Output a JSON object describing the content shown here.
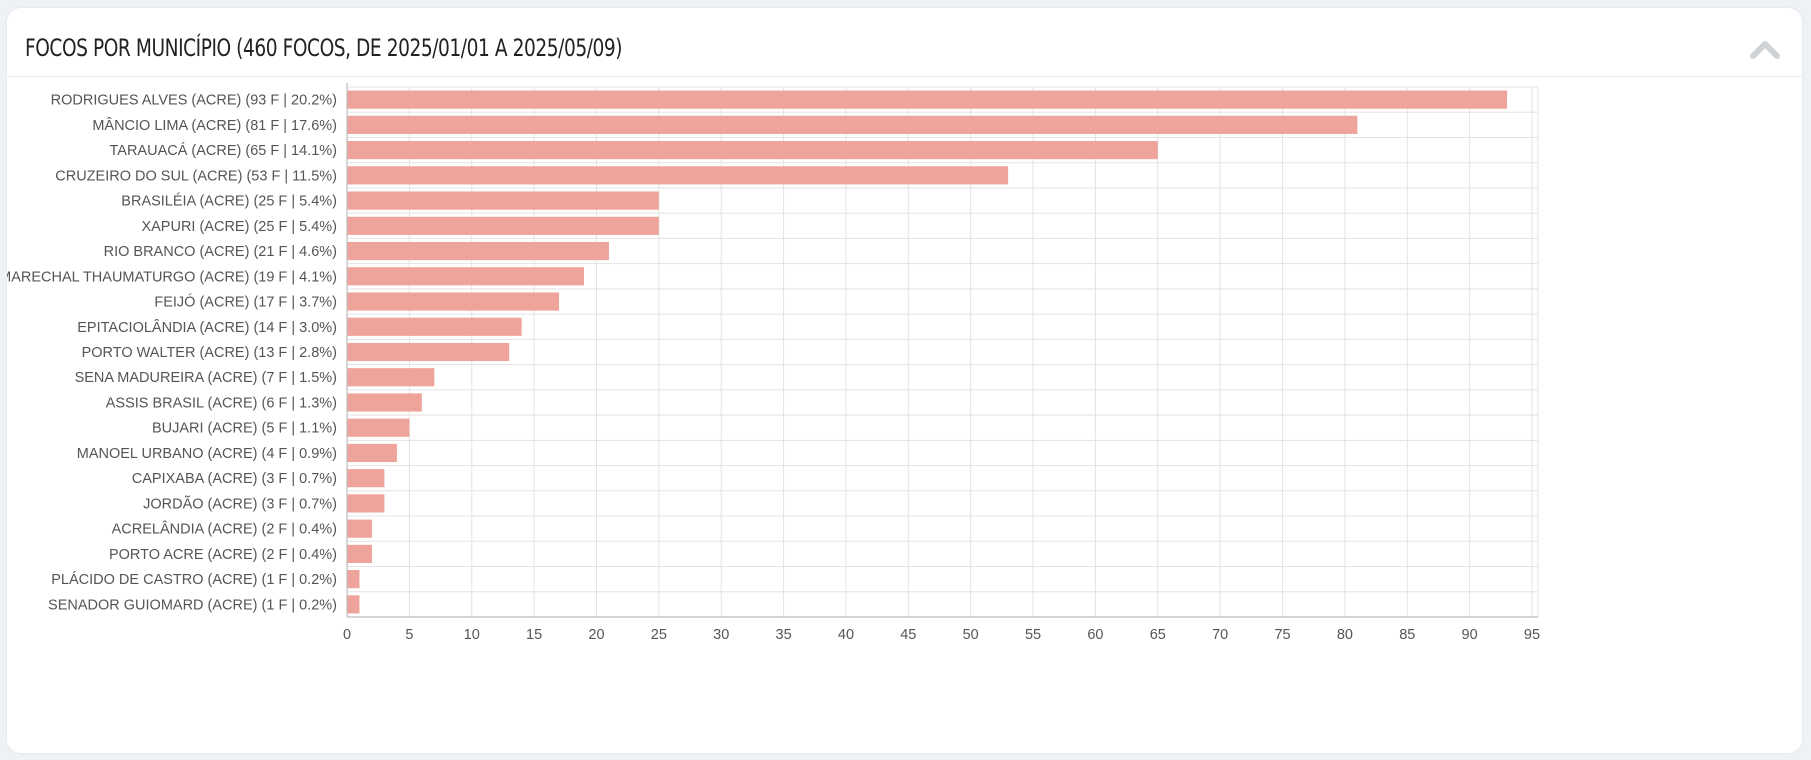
{
  "panel": {
    "title": "FOCOS POR MUNICÍPIO (460 FOCOS, DE 2025/01/01 A 2025/05/09)",
    "collapse_icon": "chevron-up-icon"
  },
  "colors": {
    "bar": "#eea39b",
    "grid": "#e3e3e3",
    "axis": "#bdbdbd"
  },
  "chart_data": {
    "type": "bar",
    "orientation": "horizontal",
    "categories": [
      "RODRIGUES ALVES (ACRE) (93 F | 20.2%)",
      "MÂNCIO LIMA (ACRE) (81 F | 17.6%)",
      "TARAUACÁ (ACRE) (65 F | 14.1%)",
      "CRUZEIRO DO SUL (ACRE) (53 F | 11.5%)",
      "BRASILÉIA (ACRE) (25 F | 5.4%)",
      "XAPURI (ACRE) (25 F | 5.4%)",
      "RIO BRANCO (ACRE) (21 F | 4.6%)",
      "MARECHAL THAUMATURGO (ACRE) (19 F | 4.1%)",
      "FEIJÓ (ACRE) (17 F | 3.7%)",
      "EPITACIOLÂNDIA (ACRE) (14 F | 3.0%)",
      "PORTO WALTER (ACRE) (13 F | 2.8%)",
      "SENA MADUREIRA (ACRE) (7 F | 1.5%)",
      "ASSIS BRASIL (ACRE) (6 F | 1.3%)",
      "BUJARI (ACRE) (5 F | 1.1%)",
      "MANOEL URBANO (ACRE) (4 F | 0.9%)",
      "CAPIXABA (ACRE) (3 F | 0.7%)",
      "JORDÃO (ACRE) (3 F | 0.7%)",
      "ACRELÂNDIA (ACRE) (2 F | 0.4%)",
      "PORTO ACRE (ACRE) (2 F | 0.4%)",
      "PLÁCIDO DE CASTRO (ACRE) (1 F | 0.2%)",
      "SENADOR GUIOMARD (ACRE) (1 F | 0.2%)"
    ],
    "values": [
      93,
      81,
      65,
      53,
      25,
      25,
      21,
      19,
      17,
      14,
      13,
      7,
      6,
      5,
      4,
      3,
      3,
      2,
      2,
      1,
      1
    ],
    "xlim": [
      0,
      95
    ],
    "xticks": [
      0,
      5,
      10,
      15,
      20,
      25,
      30,
      35,
      40,
      45,
      50,
      55,
      60,
      65,
      70,
      75,
      80,
      85,
      90,
      95
    ],
    "grid": true,
    "legend": "none"
  }
}
